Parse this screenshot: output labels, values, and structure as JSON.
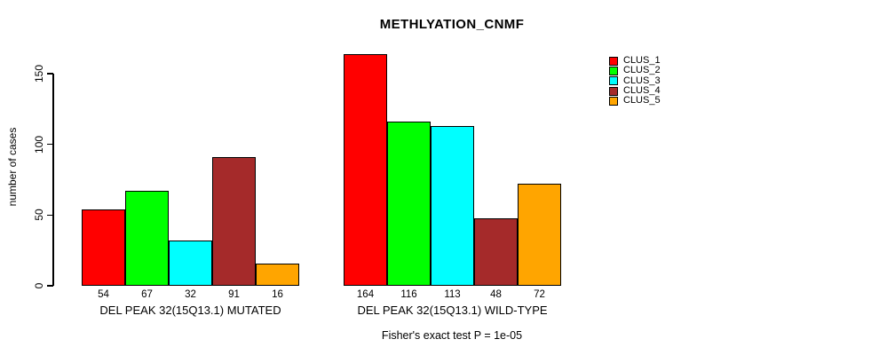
{
  "chart_data": {
    "type": "bar",
    "title": "METHLYATION_CNMF",
    "ylabel": "number of cases",
    "xlabel": "",
    "series": [
      "CLUS_1",
      "CLUS_2",
      "CLUS_3",
      "CLUS_4",
      "CLUS_5"
    ],
    "colors": [
      "#ff0000",
      "#00ff00",
      "#00ffff",
      "#a52a2a",
      "#ffa500"
    ],
    "groups": [
      {
        "label": "DEL PEAK 32(15Q13.1) MUTATED",
        "values": [
          54,
          67,
          32,
          91,
          16
        ]
      },
      {
        "label": "DEL PEAK 32(15Q13.1) WILD-TYPE",
        "values": [
          164,
          116,
          113,
          48,
          72
        ]
      }
    ],
    "bar_value_labels": [
      [
        54,
        67,
        32,
        91,
        16
      ],
      [
        164,
        116,
        113,
        48,
        72
      ]
    ],
    "yticks": [
      0,
      50,
      100,
      150
    ],
    "ylim": [
      0,
      170
    ],
    "grid": false,
    "legend_position": "right",
    "annotation": "Fisher's exact test P = 1e-05"
  }
}
